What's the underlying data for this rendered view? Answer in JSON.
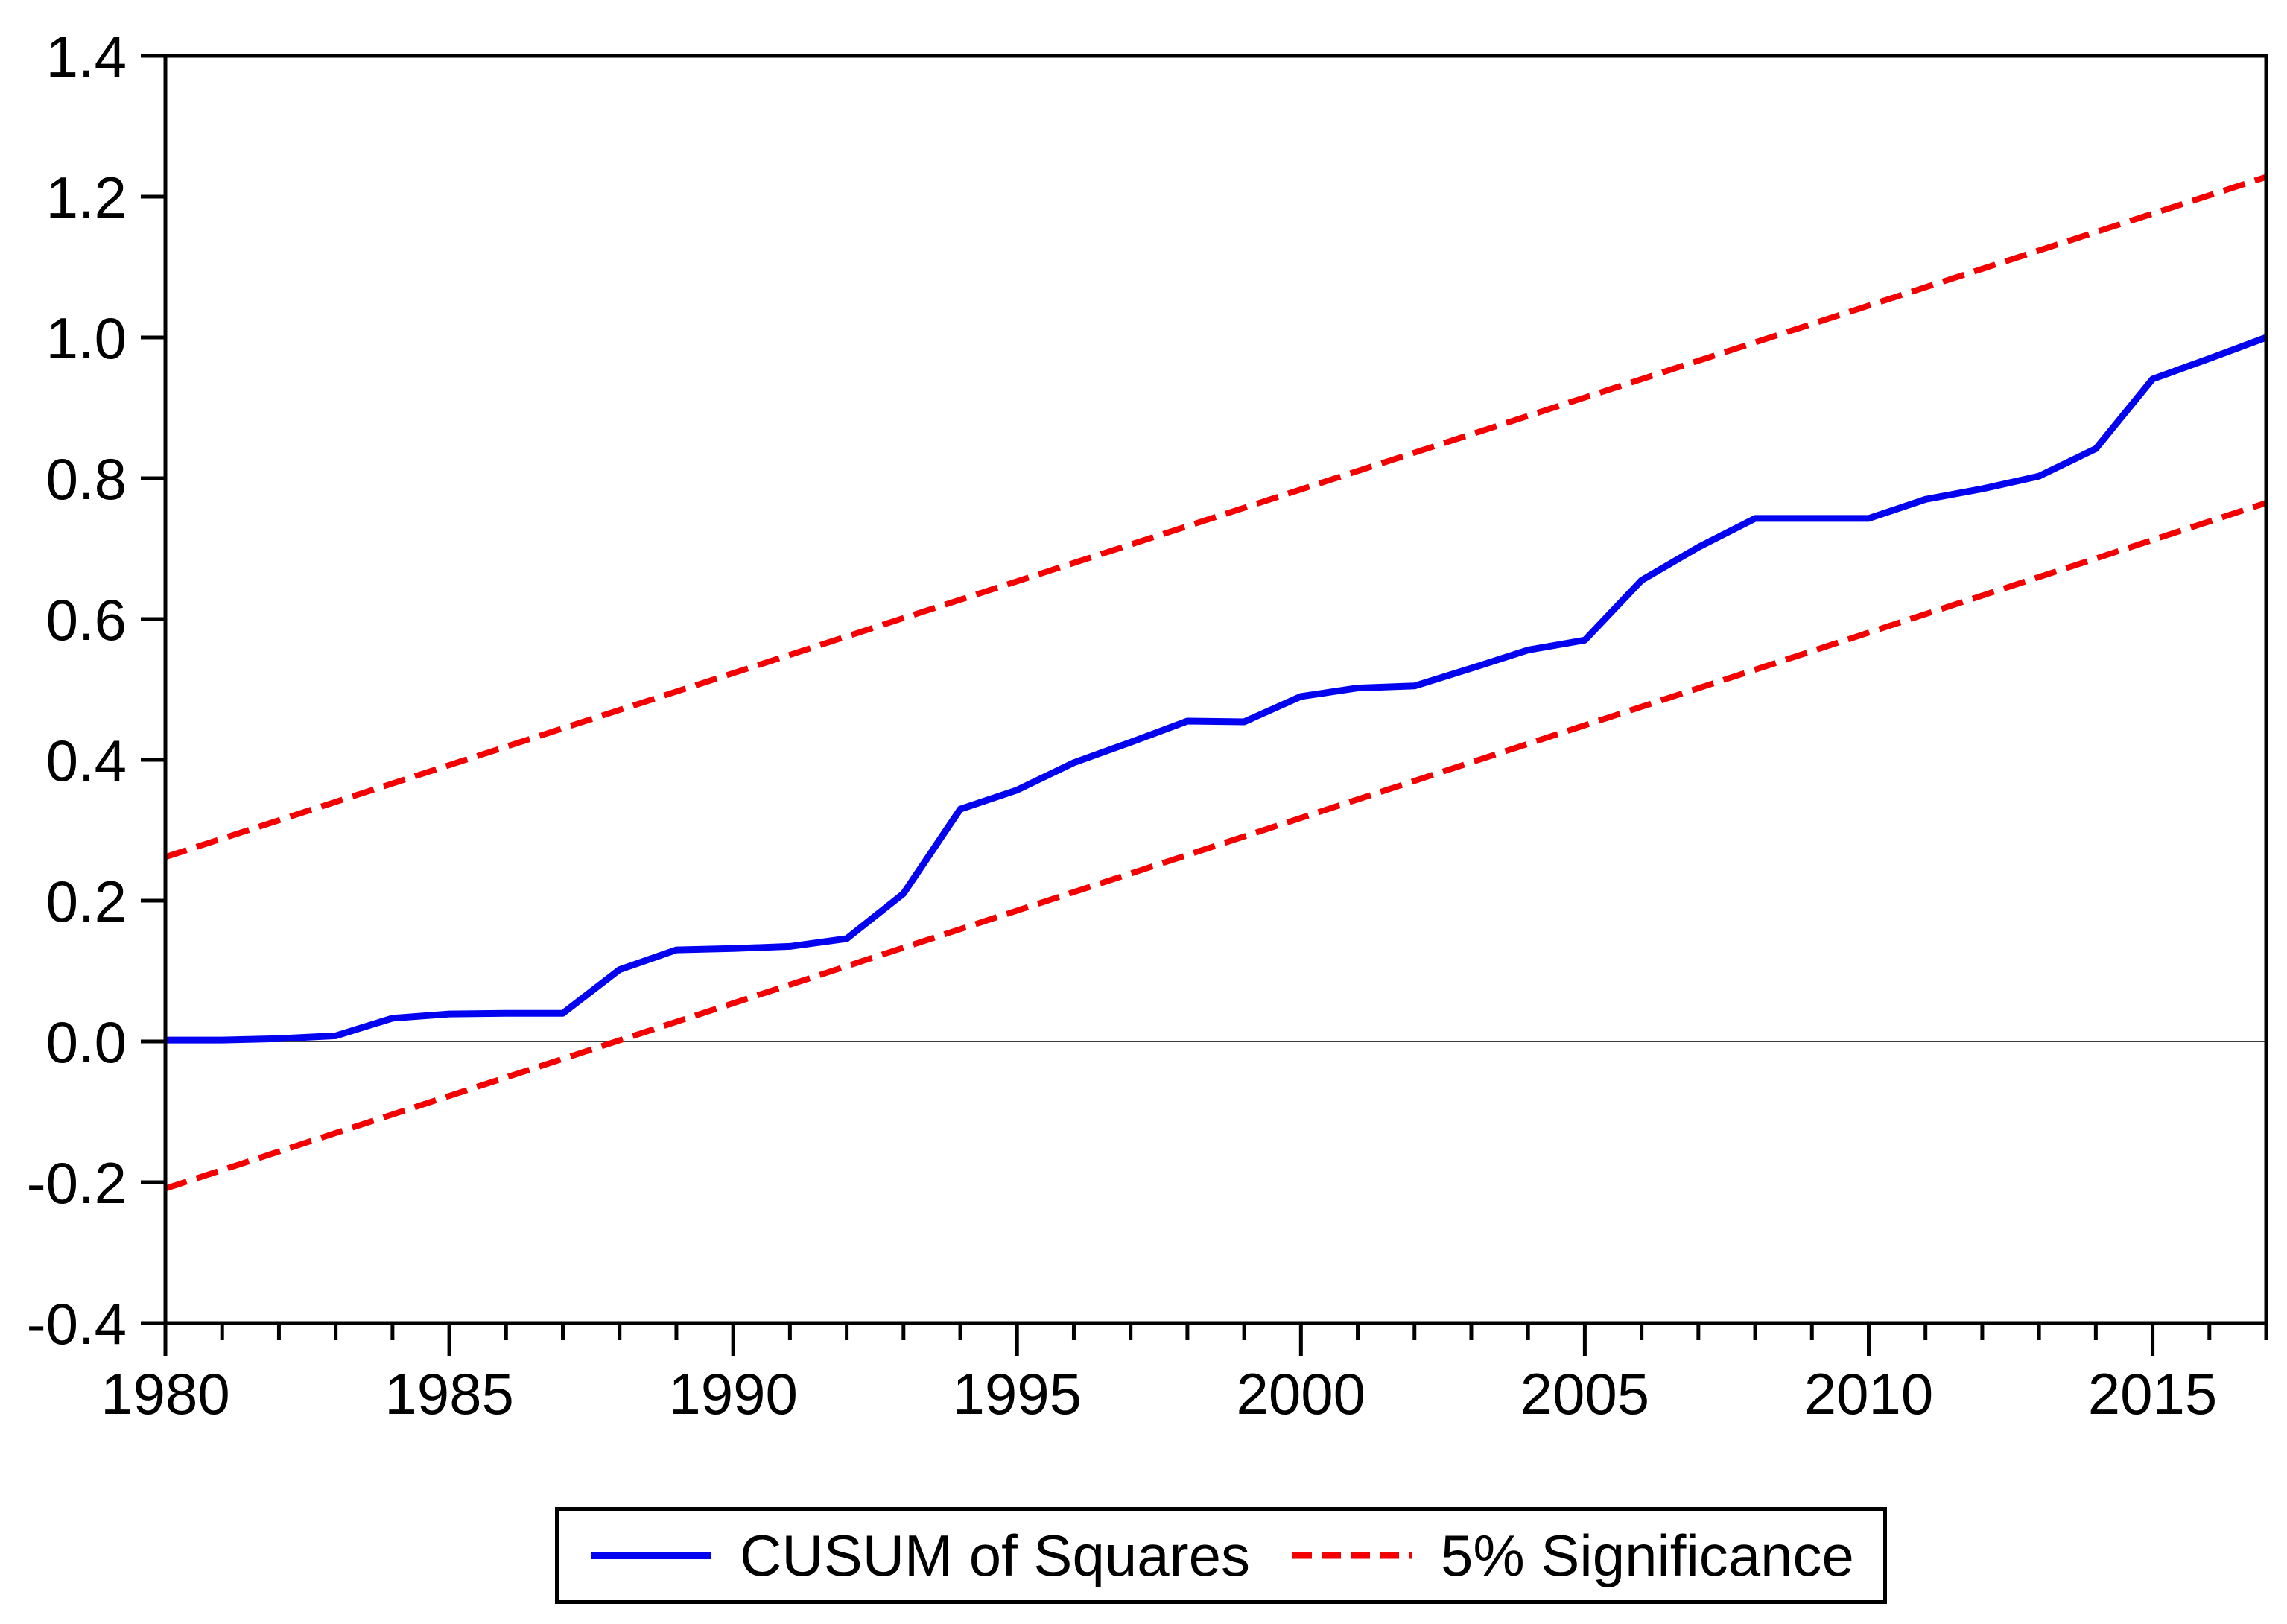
{
  "figure": {
    "background": "#ffffff",
    "frame_color": "#000000",
    "zero_line_color": "#3a3a3a"
  },
  "chart_data": {
    "type": "line",
    "title": "",
    "xlabel": "",
    "ylabel": "",
    "grid": false,
    "xlim": [
      1980,
      2017
    ],
    "ylim": [
      -0.4,
      1.4
    ],
    "xticks": [
      1980,
      1985,
      1990,
      1995,
      2000,
      2005,
      2010,
      2015
    ],
    "xtick_labels": [
      "1980",
      "1985",
      "1990",
      "1995",
      "2000",
      "2005",
      "2010",
      "2015"
    ],
    "minor_xtick_step": 1,
    "yticks": [
      -0.4,
      -0.2,
      0.0,
      0.2,
      0.4,
      0.6,
      0.8,
      1.0,
      1.2,
      1.4
    ],
    "ytick_labels": [
      "-0.4",
      "-0.2",
      "0.0",
      "0.2",
      "0.4",
      "0.6",
      "0.8",
      "1.0",
      "1.2",
      "1.4"
    ],
    "zero_line": 0.0,
    "x_years": [
      1980,
      1981,
      1982,
      1983,
      1984,
      1985,
      1986,
      1987,
      1988,
      1989,
      1990,
      1991,
      1992,
      1993,
      1994,
      1995,
      1996,
      1997,
      1998,
      1999,
      2000,
      2001,
      2002,
      2003,
      2004,
      2005,
      2006,
      2007,
      2008,
      2009,
      2010,
      2011,
      2012,
      2013,
      2014,
      2015,
      2016,
      2017
    ],
    "series": [
      {
        "name": "CUSUM of Squares",
        "color": "#0303f0",
        "style": "solid",
        "stroke_width": 9,
        "values": [
          0.002,
          0.002,
          0.004,
          0.008,
          0.033,
          0.039,
          0.04,
          0.04,
          0.102,
          0.13,
          0.132,
          0.135,
          0.146,
          0.21,
          0.33,
          0.357,
          0.396,
          0.425,
          0.455,
          0.454,
          0.49,
          0.502,
          0.505,
          0.53,
          0.556,
          0.57,
          0.655,
          0.702,
          0.743,
          0.743,
          0.743,
          0.77,
          0.785,
          0.803,
          0.842,
          0.941,
          0.97,
          1.0
        ]
      },
      {
        "name": "5% Significance upper bound",
        "color": "#f50000",
        "style": "dashed",
        "stroke_width": 8,
        "x": [
          1980,
          2017
        ],
        "values": [
          0.262,
          1.228
        ]
      },
      {
        "name": "5% Significance lower bound",
        "color": "#f50000",
        "style": "dashed",
        "stroke_width": 8,
        "x": [
          1980,
          2017
        ],
        "values": [
          -0.209,
          0.765
        ]
      }
    ],
    "legend": {
      "position": "bottom",
      "entries": [
        {
          "label": "CUSUM of Squares",
          "color": "#0303f0",
          "style": "solid"
        },
        {
          "label": "5% Significance",
          "color": "#f50000",
          "style": "dashed"
        }
      ]
    }
  }
}
